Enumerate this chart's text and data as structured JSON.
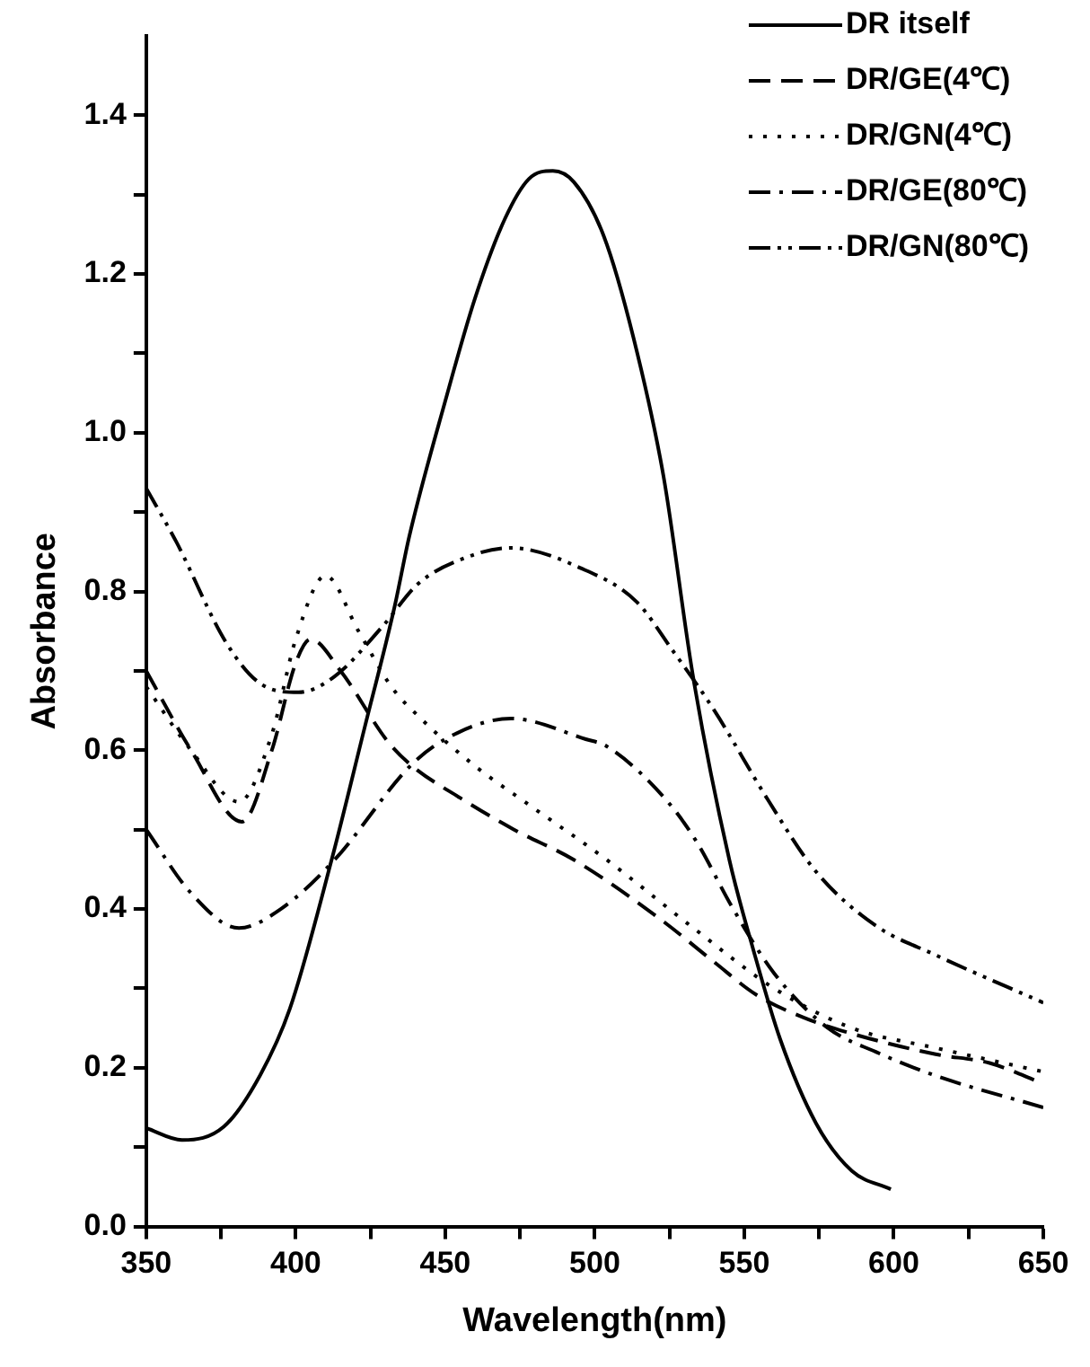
{
  "chart_data": {
    "type": "line",
    "xlabel": "Wavelength(nm)",
    "ylabel": "Absorbance",
    "xlim": [
      350,
      650
    ],
    "ylim": [
      0,
      1.5
    ],
    "xticks": [
      350,
      {
        "value": 375,
        "label": null
      },
      400,
      {
        "value": 425,
        "label": null
      },
      450,
      {
        "value": 475,
        "label": null
      },
      500,
      {
        "value": 525,
        "label": null
      },
      550,
      {
        "value": 575,
        "label": null
      },
      600,
      {
        "value": 625,
        "label": null
      },
      650
    ],
    "yticks": [
      {
        "value": 0,
        "label": "0.0"
      },
      {
        "value": 0.1,
        "label": null
      },
      {
        "value": 0.2,
        "label": "0.2"
      },
      {
        "value": 0.3,
        "label": null
      },
      {
        "value": 0.4,
        "label": "0.4"
      },
      {
        "value": 0.5,
        "label": null
      },
      {
        "value": 0.6,
        "label": "0.6"
      },
      {
        "value": 0.7,
        "label": null
      },
      {
        "value": 0.8,
        "label": "0.8"
      },
      {
        "value": 0.9,
        "label": null
      },
      {
        "value": 1.0,
        "label": "1.0"
      },
      {
        "value": 1.1,
        "label": null
      },
      {
        "value": 1.2,
        "label": "1.2"
      },
      {
        "value": 1.3,
        "label": null
      },
      {
        "value": 1.4,
        "label": "1.4"
      }
    ],
    "grid": false,
    "legend": "top right",
    "series": [
      {
        "name": "DR itself",
        "color": "#000000",
        "line_style": "solid",
        "x": [
          350,
          362,
          376,
          388,
          398,
          412,
          423,
          433,
          438,
          450,
          460,
          470,
          478,
          486,
          493,
          503,
          513,
          523,
          533,
          545,
          553,
          562,
          574,
          586,
          599
        ],
        "values": [
          0.124,
          0.109,
          0.126,
          0.19,
          0.274,
          0.462,
          0.628,
          0.78,
          0.87,
          1.04,
          1.17,
          1.27,
          1.32,
          1.33,
          1.316,
          1.248,
          1.119,
          0.945,
          0.69,
          0.462,
          0.349,
          0.236,
          0.13,
          0.07,
          0.047
        ]
      },
      {
        "name": "DR/GE(4℃)",
        "color": "#000000",
        "line_style": "dashed",
        "x": [
          350,
          365,
          382,
          392,
          400,
          405,
          415,
          431,
          439,
          455,
          473,
          493,
          522,
          540,
          554,
          570,
          586,
          614,
          632,
          650
        ],
        "values": [
          0.7,
          0.6,
          0.51,
          0.6,
          0.71,
          0.74,
          0.7,
          0.61,
          0.58,
          0.54,
          0.5,
          0.462,
          0.387,
          0.333,
          0.292,
          0.263,
          0.243,
          0.217,
          0.206,
          0.18
        ]
      },
      {
        "name": "DR/GN(4℃)",
        "color": "#000000",
        "line_style": "dotted",
        "x": [
          350,
          365,
          381,
          392,
          400,
          410,
          421,
          432,
          441,
          460,
          477,
          504,
          532,
          560,
          586,
          614,
          650
        ],
        "values": [
          0.68,
          0.6,
          0.535,
          0.62,
          0.74,
          0.82,
          0.75,
          0.68,
          0.643,
          0.58,
          0.534,
          0.462,
          0.379,
          0.3,
          0.25,
          0.225,
          0.195
        ]
      },
      {
        "name": "DR/GE(80℃)",
        "color": "#000000",
        "line_style": "dashdot",
        "x": [
          350,
          365,
          381,
          395,
          413,
          439,
          453,
          472,
          497,
          504,
          524,
          534,
          546,
          560,
          578,
          594,
          614,
          650
        ],
        "values": [
          0.5,
          0.42,
          0.376,
          0.4,
          0.462,
          0.583,
          0.62,
          0.64,
          0.614,
          0.605,
          0.537,
          0.485,
          0.402,
          0.319,
          0.25,
          0.22,
          0.19,
          0.15
        ]
      },
      {
        "name": "DR/GN(80℃)",
        "color": "#000000",
        "line_style": "dashdotdot",
        "x": [
          350,
          360,
          377,
          389,
          401,
          413,
          429,
          441,
          457,
          472,
          495,
          514,
          526,
          540,
          558,
          574,
          594,
          614,
          650
        ],
        "values": [
          0.93,
          0.863,
          0.734,
          0.682,
          0.673,
          0.693,
          0.756,
          0.81,
          0.843,
          0.855,
          0.83,
          0.787,
          0.726,
          0.65,
          0.537,
          0.447,
          0.379,
          0.342,
          0.282
        ]
      }
    ]
  }
}
